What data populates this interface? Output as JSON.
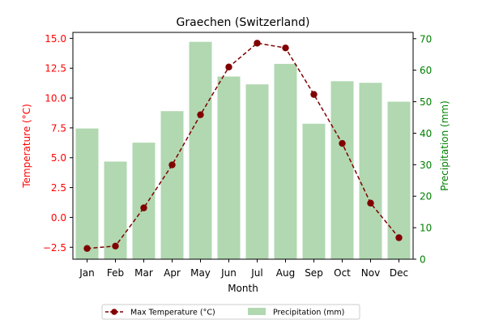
{
  "chart_data": {
    "type": "bar+line",
    "title": "Graechen (Switzerland)",
    "xlabel": "Month",
    "categories": [
      "Jan",
      "Feb",
      "Mar",
      "Apr",
      "May",
      "Jun",
      "Jul",
      "Aug",
      "Sep",
      "Oct",
      "Nov",
      "Dec"
    ],
    "y_left": {
      "label": "Temperature (°C)",
      "lim": [
        -3.5,
        15.5
      ],
      "ticks": [
        -2.5,
        0.0,
        2.5,
        5.0,
        7.5,
        10.0,
        12.5,
        15.0
      ],
      "tick_labels": [
        "−2.5",
        "0.0",
        "2.5",
        "5.0",
        "7.5",
        "10.0",
        "12.5",
        "15.0"
      ],
      "color": "#ff0000"
    },
    "y_right": {
      "label": "Precipitation (mm)",
      "lim": [
        0,
        72
      ],
      "ticks": [
        0,
        10,
        20,
        30,
        40,
        50,
        60,
        70
      ],
      "tick_labels": [
        "0",
        "10",
        "20",
        "30",
        "40",
        "50",
        "60",
        "70"
      ],
      "color": "#008000"
    },
    "series": [
      {
        "name": "Max Temperature (°C)",
        "kind": "line",
        "axis": "left",
        "color": "#800000",
        "values": [
          -2.6,
          -2.4,
          0.8,
          4.4,
          8.6,
          12.6,
          14.6,
          14.2,
          10.3,
          6.2,
          1.2,
          -1.7
        ]
      },
      {
        "name": "Precipitation (mm)",
        "kind": "bar",
        "axis": "right",
        "color": "#b1d8b1",
        "values": [
          41.5,
          31.0,
          37.0,
          47.0,
          69.0,
          58.0,
          55.5,
          62.0,
          43.0,
          56.5,
          56.0,
          50.0
        ]
      }
    ],
    "legend": {
      "placement": "bottom-center",
      "columns": 2
    },
    "grid": false
  }
}
